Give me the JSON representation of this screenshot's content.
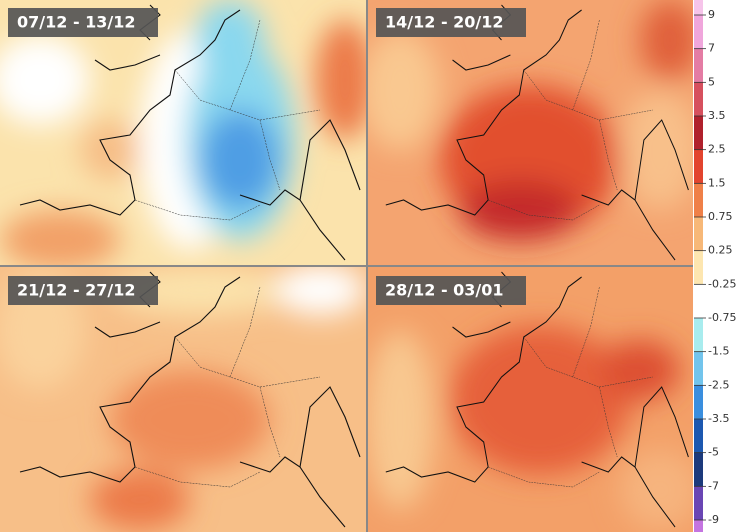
{
  "panels": [
    {
      "title": "07/12 - 13/12"
    },
    {
      "title": "14/12 - 20/12"
    },
    {
      "title": "21/12 - 27/12"
    },
    {
      "title": "28/12 - 03/01"
    }
  ],
  "legend": {
    "ticks": [
      9,
      7,
      5,
      3.5,
      2.5,
      1.5,
      0.75,
      0.25,
      -0.25,
      -0.75,
      -1.5,
      -2.5,
      -3.5,
      -5,
      -7,
      -9
    ],
    "colors": [
      "#f6c4ea",
      "#f0a6dc",
      "#e47ca4",
      "#d6505e",
      "#b0202c",
      "#e2442e",
      "#ef8048",
      "#f7b878",
      "#fde6b0",
      "#ffffff",
      "#a8ecee",
      "#72c4ec",
      "#3a8ede",
      "#1c58b0",
      "#1c3a7c",
      "#6a46b4",
      "#c474e0"
    ]
  }
}
